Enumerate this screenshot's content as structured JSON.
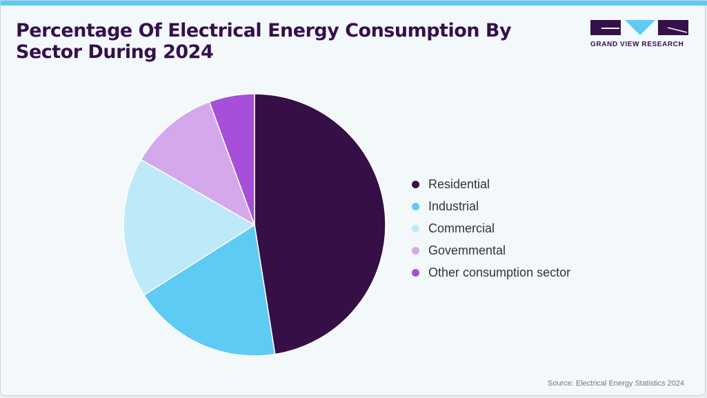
{
  "title": "Percentage Of Electrical Energy Consumption By Sector During 2024",
  "logo": {
    "text": "GRAND VIEW RESEARCH",
    "colors": {
      "dark": "#36104a",
      "accent": "#5ecbf5"
    }
  },
  "source": "Source: Electrical Energy Statistics 2024",
  "chart_data": {
    "type": "pie",
    "title": "Percentage Of Electrical Energy Consumption By Sector During 2024",
    "unit": "%",
    "legend_position": "right",
    "start_angle": "12 o'clock, clockwise",
    "slices": [
      {
        "label": "Residential",
        "value": 47.5,
        "color": "#360f47"
      },
      {
        "label": "Industrial",
        "value": 18.5,
        "color": "#5ecbf5"
      },
      {
        "label": "Commercial",
        "value": 17.3,
        "color": "#bde9f9"
      },
      {
        "label": "Govemmental",
        "value": 11.1,
        "color": "#d5a8ec"
      },
      {
        "label": "Other consumption sector",
        "value": 5.6,
        "color": "#a54fdb"
      }
    ]
  }
}
